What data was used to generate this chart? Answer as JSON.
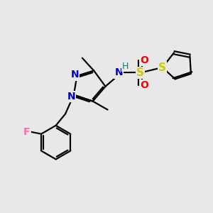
{
  "background_color": "#e8e8e8",
  "colors": {
    "C": "#000000",
    "N": "#0000cc",
    "S_sulfonyl": "#cccc00",
    "S_thiophene": "#cccc00",
    "O": "#ff0000",
    "F": "#ff69b4",
    "H": "#008080",
    "bond": "#000000"
  },
  "figsize": [
    3.0,
    3.0
  ],
  "dpi": 100
}
